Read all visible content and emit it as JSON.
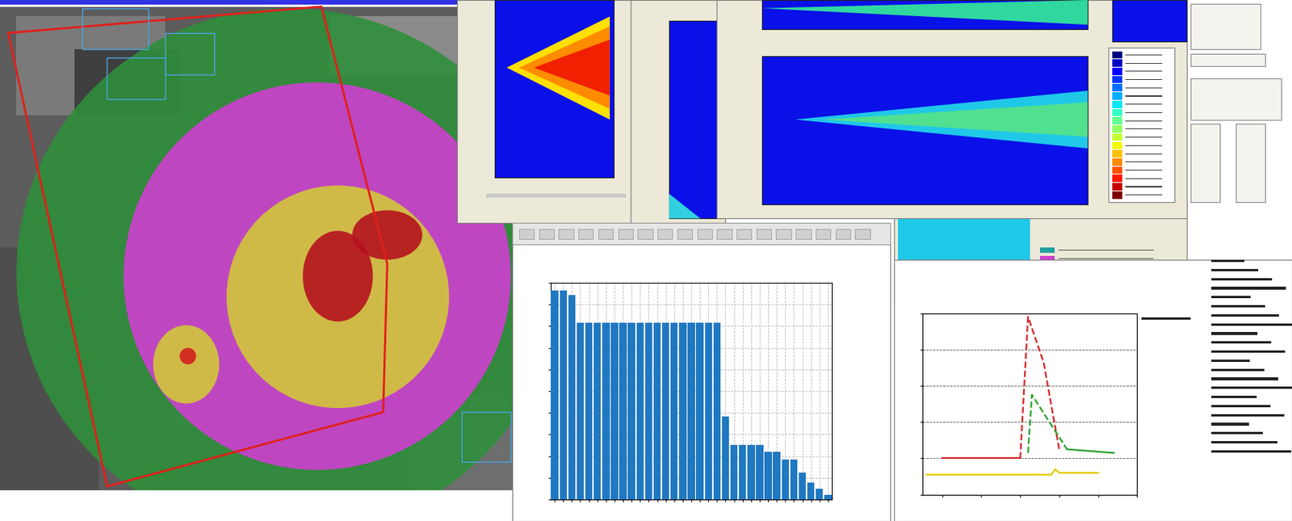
{
  "chart_data": [
    {
      "type": "bar",
      "x": [
        1,
        2,
        3,
        4,
        5,
        6,
        7,
        8,
        9,
        10,
        11,
        12,
        13,
        14,
        15,
        16,
        17,
        18,
        19,
        20,
        21,
        22,
        23,
        24,
        25,
        26,
        27,
        28,
        29,
        30,
        31,
        32,
        33
      ],
      "values": [
        966,
        966,
        943,
        814,
        814,
        814,
        814,
        814,
        814,
        814,
        814,
        814,
        814,
        814,
        814,
        814,
        814,
        814,
        814,
        814,
        384,
        251,
        251,
        251,
        251,
        220,
        220,
        183,
        183,
        125,
        80,
        49,
        23
      ],
      "color": "#1f78c1",
      "xlim": [
        0.5,
        33.5
      ],
      "ylim": [
        0,
        1000
      ],
      "xticks": [
        1,
        2,
        3,
        4,
        5,
        6,
        7,
        8,
        9,
        10,
        11,
        12,
        13,
        14,
        15,
        16,
        17,
        18,
        19,
        20,
        21,
        22,
        23,
        24,
        25,
        26,
        27,
        28,
        29,
        30,
        31,
        32,
        33
      ],
      "yticks": [
        0,
        100,
        200,
        300,
        400,
        500,
        600,
        700,
        800,
        900,
        1000
      ],
      "grid": true,
      "tick_labels": false
    },
    {
      "type": "line",
      "series": [
        {
          "color": "#d62728",
          "line_style": "solid",
          "x": [
            0,
            2,
            4
          ],
          "values": [
            20,
            20,
            20
          ]
        },
        {
          "color": "#d62728",
          "line_style": "dashed",
          "x": [
            4,
            4.4,
            5.2,
            6
          ],
          "values": [
            20,
            98,
            73,
            25
          ]
        },
        {
          "color": "#2ca02c",
          "line_style": "dashed",
          "x": [
            4.4,
            4.6,
            5.2,
            6.4
          ],
          "values": [
            23,
            55,
            45,
            25
          ]
        },
        {
          "color": "#2ca02c",
          "line_style": "solid",
          "x": [
            6.4,
            8.8
          ],
          "values": [
            25,
            23
          ]
        },
        {
          "color": "#e6c800",
          "line_style": "solid",
          "x": [
            -0.8,
            5.6,
            5.8,
            6,
            8
          ],
          "values": [
            11,
            11,
            14,
            12,
            12
          ]
        }
      ],
      "xlim": [
        -1,
        10
      ],
      "ylim": [
        0,
        100
      ],
      "xticks": [
        0,
        2,
        4,
        6,
        8,
        10
      ],
      "yticks": [
        0,
        20,
        40,
        60,
        80,
        100
      ],
      "grid": "y",
      "tick_labels": false
    }
  ]
}
